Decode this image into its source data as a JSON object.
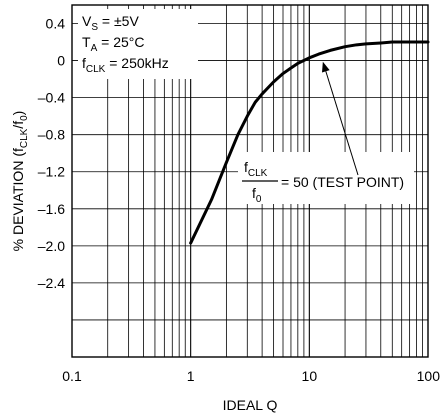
{
  "chart_data": {
    "type": "line",
    "title": "",
    "xlabel": "IDEAL Q",
    "ylabel_parts": {
      "main": "% DEVIATION (f",
      "sub1": "CLK",
      "mid": "/f",
      "sub2": "0",
      "end": ")"
    },
    "x_scale": "log",
    "xlim": [
      0.1,
      100
    ],
    "ylim": [
      -3.2,
      0.6
    ],
    "x_ticks": [
      {
        "value": 0.1,
        "label": "0.1"
      },
      {
        "value": 1,
        "label": "1"
      },
      {
        "value": 10,
        "label": "10"
      },
      {
        "value": 100,
        "label": "100"
      }
    ],
    "y_ticks": [
      {
        "value": 0.4,
        "label": "0.4"
      },
      {
        "value": 0,
        "label": "0"
      },
      {
        "value": -0.4,
        "label": "–0.4"
      },
      {
        "value": -0.8,
        "label": "–0.8"
      },
      {
        "value": -1.2,
        "label": "–1.2"
      },
      {
        "value": -1.6,
        "label": "–1.6"
      },
      {
        "value": -2.0,
        "label": "–2.0"
      },
      {
        "value": -2.4,
        "label": "–2.4"
      }
    ],
    "grid": true,
    "series": [
      {
        "x": [
          1.0,
          1.5,
          2.0,
          2.5,
          3.0,
          3.5,
          4.0,
          5.0,
          6.0,
          7.0,
          8.0,
          10.0,
          12.0,
          15.0,
          20.0,
          25.0,
          30.0,
          40.0,
          50.0,
          60.0,
          70.0,
          100.0
        ],
        "y": [
          -1.97,
          -1.5,
          -1.1,
          -0.8,
          -0.6,
          -0.45,
          -0.36,
          -0.23,
          -0.14,
          -0.08,
          -0.03,
          0.03,
          0.07,
          0.11,
          0.15,
          0.17,
          0.18,
          0.19,
          0.2,
          0.2,
          0.2,
          0.2
        ]
      }
    ],
    "conditions": {
      "vs": {
        "main": "V",
        "sub": "S",
        "rest": " = ±5V"
      },
      "ta": {
        "main": "T",
        "sub": "A",
        "rest": " = 25°C"
      },
      "fclk": {
        "main": "f",
        "sub": "CLK",
        "rest": " = 250kHz"
      }
    },
    "annotation": {
      "num_main": "f",
      "num_sub": "CLK",
      "den_main": "f",
      "den_sub": "0",
      "rest": " = 50 (TEST POINT)",
      "arrow_target": {
        "x": 13,
        "y": 0.02
      }
    }
  }
}
